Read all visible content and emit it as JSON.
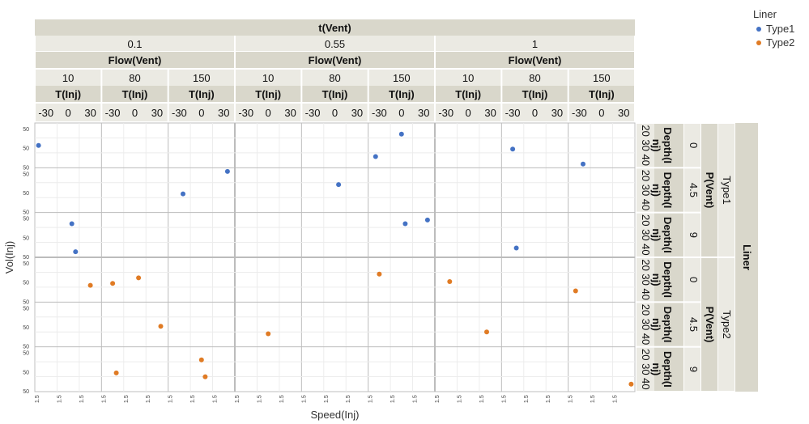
{
  "chart_data": {
    "type": "scatter",
    "xlabel": "Speed(Inj)",
    "ylabel": "Vol(Inj)",
    "legend": {
      "title": "Liner",
      "position": "top-right"
    },
    "series": [
      {
        "name": "Type1",
        "color": "#4472c4"
      },
      {
        "name": "Type2",
        "color": "#e07b24"
      }
    ],
    "column_headers": {
      "tvent_title": "t(Vent)",
      "tvent_values": [
        "0.1",
        "0.55",
        "1"
      ],
      "flow_title": "Flow(Vent)",
      "flow_values": [
        "10",
        "80",
        "150"
      ],
      "tinj_title": "T(Inj)",
      "tinj_ticks": [
        "-30",
        "0",
        "30"
      ]
    },
    "row_headers": {
      "liner_title": "Liner",
      "liner_values": [
        "Type1",
        "Type2"
      ],
      "pvent_title": "P(Vent)",
      "pvent_values": [
        "0",
        "4.5",
        "9"
      ],
      "depth_title": "Depth(Inj)",
      "depth_ticks": [
        "20",
        "30",
        "40"
      ]
    },
    "y_tick_label": "50",
    "x_tick_label": "1.5",
    "points": [
      {
        "series": "Type1",
        "cell": [
          0,
          0,
          0,
          0,
          0
        ],
        "x": 1.2,
        "y": 50
      },
      {
        "series": "Type1",
        "cell": [
          0,
          2,
          0,
          0,
          1
        ],
        "x": 1.5,
        "y": 50.6
      },
      {
        "series": "Type1",
        "cell": [
          0,
          2,
          0,
          0,
          1
        ],
        "x": 1.6,
        "y": 49.1
      },
      {
        "series": "Type1",
        "cell": [
          0,
          0,
          2,
          1,
          0
        ],
        "x": 1.4,
        "y": 49.8
      },
      {
        "series": "Type1",
        "cell": [
          0,
          2,
          2,
          1,
          0
        ],
        "x": 1.5,
        "y": 49.3
      },
      {
        "series": "Type1",
        "cell": [
          0,
          1,
          1,
          1,
          1
        ],
        "x": 1.5,
        "y": 50.3
      },
      {
        "series": "Type1",
        "cell": [
          0,
          0,
          1,
          2,
          0
        ],
        "x": 1.3,
        "y": 49.4
      },
      {
        "series": "Type1",
        "cell": [
          0,
          1,
          0,
          2,
          0
        ],
        "x": 1.5,
        "y": 49.8
      },
      {
        "series": "Type1",
        "cell": [
          0,
          1,
          0,
          2,
          2
        ],
        "x": 1.5,
        "y": 51.0
      },
      {
        "series": "Type1",
        "cell": [
          0,
          0,
          1,
          2,
          1
        ],
        "x": 1.4,
        "y": 50.6
      },
      {
        "series": "Type1",
        "cell": [
          0,
          2,
          1,
          2,
          1
        ],
        "x": 1.5,
        "y": 50.6
      },
      {
        "series": "Type1",
        "cell": [
          0,
          2,
          1,
          2,
          2
        ],
        "x": 1.5,
        "y": 50.8
      },
      {
        "series": "Type1",
        "cell": [
          0,
          0,
          2,
          2,
          0
        ],
        "x": 1.5,
        "y": 49.0
      },
      {
        "series": "Type2",
        "cell": [
          1,
          0,
          2,
          0,
          0
        ],
        "x": 1.5,
        "y": 49.9
      },
      {
        "series": "Type2",
        "cell": [
          1,
          1,
          1,
          0,
          1
        ],
        "x": 1.4,
        "y": 49.5
      },
      {
        "series": "Type2",
        "cell": [
          1,
          1,
          2,
          0,
          2
        ],
        "x": 1.3,
        "y": 49.6
      },
      {
        "series": "Type2",
        "cell": [
          1,
          0,
          0,
          0,
          2
        ],
        "x": 1.4,
        "y": 49.7
      },
      {
        "series": "Type2",
        "cell": [
          1,
          0,
          0,
          1,
          0
        ],
        "x": 1.4,
        "y": 49.8
      },
      {
        "series": "Type2",
        "cell": [
          1,
          1,
          0,
          1,
          2
        ],
        "x": 1.5,
        "y": 49.9
      },
      {
        "series": "Type2",
        "cell": [
          1,
          0,
          1,
          2,
          0
        ],
        "x": 1.4,
        "y": 50.3
      },
      {
        "series": "Type2",
        "cell": [
          1,
          0,
          0,
          1,
          1
        ],
        "x": 1.5,
        "y": 50.1
      },
      {
        "series": "Type2",
        "cell": [
          1,
          2,
          0,
          1,
          0
        ],
        "x": 1.5,
        "y": 49.8
      },
      {
        "series": "Type2",
        "cell": [
          1,
          0,
          2,
          2,
          0
        ],
        "x": 1.3,
        "y": 49.4
      },
      {
        "series": "Type2",
        "cell": [
          1,
          2,
          0,
          2,
          1
        ],
        "x": 1.4,
        "y": 50.5
      },
      {
        "series": "Type2",
        "cell": [
          1,
          2,
          0,
          2,
          1
        ],
        "x": 1.5,
        "y": 49.6
      },
      {
        "series": "Type2",
        "cell": [
          1,
          2,
          2,
          2,
          2
        ],
        "x": 1.6,
        "y": 49.2
      }
    ]
  }
}
